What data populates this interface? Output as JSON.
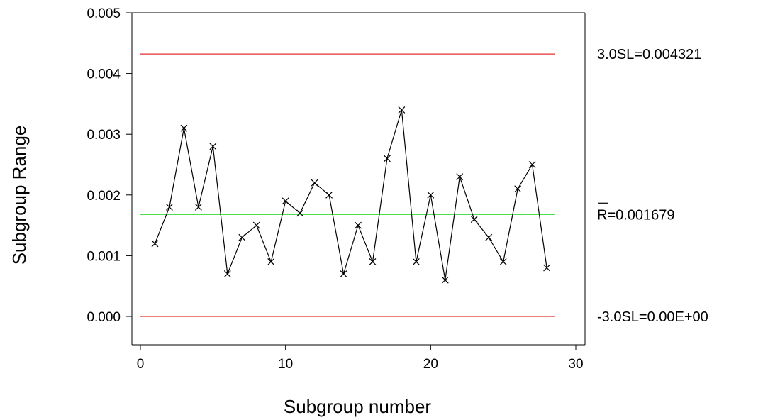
{
  "chart_data": {
    "type": "line",
    "title": "",
    "xlabel": "Subgroup number",
    "ylabel": "Subgroup Range",
    "xlim": [
      0,
      30
    ],
    "ylim": [
      0,
      0.005
    ],
    "x_ticks": [
      "0",
      "10",
      "20",
      "30"
    ],
    "y_ticks": [
      "0.000",
      "0.001",
      "0.002",
      "0.003",
      "0.004",
      "0.005"
    ],
    "grid": false,
    "series": [
      {
        "x": [
          1,
          2,
          3,
          4,
          5,
          6,
          7,
          8,
          9,
          10,
          11,
          12,
          13,
          14,
          15,
          16,
          17,
          18,
          19,
          20,
          21,
          22,
          23,
          24,
          25,
          26,
          27,
          28
        ],
        "values": [
          0.0012,
          0.0018,
          0.0031,
          0.0018,
          0.0028,
          0.0007,
          0.0013,
          0.0015,
          0.0009,
          0.0019,
          0.0017,
          0.0022,
          0.002,
          0.0007,
          0.0015,
          0.0009,
          0.0026,
          0.0034,
          0.0009,
          0.002,
          0.0006,
          0.0023,
          0.0016,
          0.0013,
          0.0009,
          0.0021,
          0.0025,
          0.0008
        ],
        "color": "#000000",
        "marker": "x"
      }
    ],
    "reference_lines": [
      {
        "value": 0.004321,
        "label": "3.0SL=0.004321",
        "color": "#e03030"
      },
      {
        "value": 0.001679,
        "label": "R=0.001679",
        "color": "#33dd33"
      },
      {
        "value": 0.0,
        "label": "-3.0SL=0.00E+00",
        "color": "#e03030"
      }
    ]
  }
}
